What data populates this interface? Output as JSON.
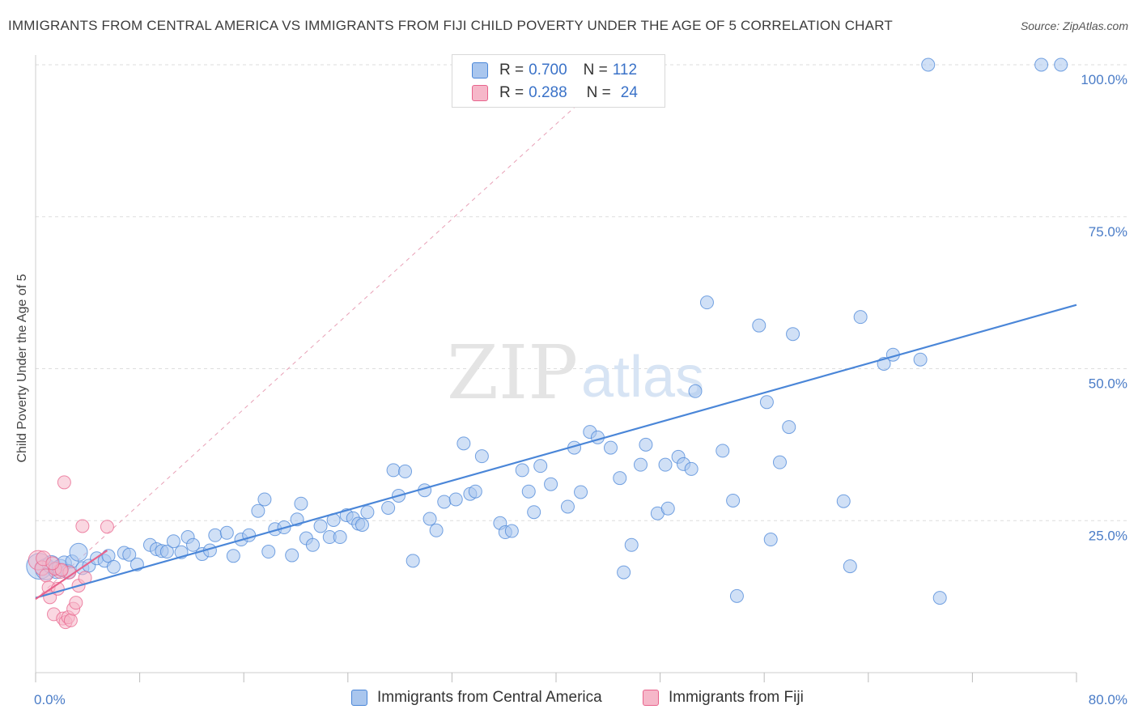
{
  "title": "IMMIGRANTS FROM CENTRAL AMERICA VS IMMIGRANTS FROM FIJI CHILD POVERTY UNDER THE AGE OF 5 CORRELATION CHART",
  "source": "Source: ZipAtlas.com",
  "watermark": {
    "zip": "ZIP",
    "atlas": "atlas"
  },
  "colors": {
    "blue": "#4a86d8",
    "blue_fill": "#a9c6ee",
    "pink": "#e8638c",
    "pink_fill": "#f6b7c9",
    "tick": "#4a7cc7",
    "grid": "#dddddd"
  },
  "legend": {
    "rows": [
      {
        "r_label": "R =",
        "r_value": "0.700",
        "n_label": "N =",
        "n_value": "112"
      },
      {
        "r_label": "R =",
        "r_value": "0.288",
        "n_label": "N =",
        "n_value": "24"
      }
    ]
  },
  "bottom_legend": [
    "Immigrants from Central America",
    "Immigrants from Fiji"
  ],
  "chart_data": {
    "type": "scatter",
    "title": "IMMIGRANTS FROM CENTRAL AMERICA VS IMMIGRANTS FROM FIJI CHILD POVERTY UNDER THE AGE OF 5 CORRELATION CHART",
    "xlabel": "",
    "ylabel": "Child Poverty Under the Age of 5",
    "xlim": [
      0,
      80
    ],
    "ylim": [
      0,
      100
    ],
    "x_tick_labels": [
      {
        "value": 0,
        "label": "0.0%"
      },
      {
        "value": 80,
        "label": "80.0%"
      }
    ],
    "y_tick_labels": [
      {
        "value": 25,
        "label": "25.0%"
      },
      {
        "value": 50,
        "label": "50.0%"
      },
      {
        "value": 75,
        "label": "75.0%"
      },
      {
        "value": 100,
        "label": "100.0%"
      }
    ],
    "grid": true,
    "series": [
      {
        "name": "Immigrants from Central America",
        "color": "#4a86d8",
        "R": 0.7,
        "N": 112,
        "trend": [
          [
            0,
            12.3
          ],
          [
            80,
            60.5
          ]
        ],
        "points": [
          [
            0.3,
            17.5,
            16
          ],
          [
            0.8,
            17,
            13
          ],
          [
            1.2,
            17.8,
            11
          ],
          [
            1.6,
            16.8,
            10
          ],
          [
            1.9,
            17.3,
            10
          ],
          [
            2.2,
            18,
            9
          ],
          [
            2.5,
            16.6,
            9
          ],
          [
            2.8,
            18.3,
            8
          ],
          [
            3.3,
            19.8,
            11
          ],
          [
            3.6,
            17.2,
            8
          ],
          [
            4.1,
            17.6,
            8
          ],
          [
            4.7,
            18.8,
            8
          ],
          [
            5.3,
            18.4,
            8
          ],
          [
            5.6,
            19.2,
            8
          ],
          [
            6.0,
            17.4,
            8
          ],
          [
            6.8,
            19.7,
            8
          ],
          [
            7.2,
            19.4,
            8
          ],
          [
            7.8,
            17.8,
            8
          ],
          [
            8.8,
            21,
            8
          ],
          [
            9.3,
            20.3,
            8
          ],
          [
            9.7,
            20,
            8
          ],
          [
            10.1,
            19.9,
            8
          ],
          [
            10.6,
            21.6,
            8
          ],
          [
            11.2,
            19.8,
            8
          ],
          [
            11.7,
            22.3,
            8
          ],
          [
            12.1,
            21,
            8
          ],
          [
            12.8,
            19.5,
            8
          ],
          [
            13.4,
            20.1,
            8
          ],
          [
            13.8,
            22.6,
            8
          ],
          [
            14.7,
            23,
            8
          ],
          [
            15.2,
            19.2,
            8
          ],
          [
            15.8,
            21.9,
            8
          ],
          [
            16.4,
            22.6,
            8
          ],
          [
            17.1,
            26.6,
            8
          ],
          [
            17.6,
            28.5,
            8
          ],
          [
            17.9,
            19.9,
            8
          ],
          [
            18.4,
            23.6,
            8
          ],
          [
            19.1,
            23.9,
            8
          ],
          [
            19.7,
            19.3,
            8
          ],
          [
            20.1,
            25.2,
            8
          ],
          [
            20.4,
            27.8,
            8
          ],
          [
            20.8,
            22.1,
            8
          ],
          [
            21.3,
            21,
            8
          ],
          [
            21.9,
            24.1,
            8
          ],
          [
            22.6,
            22.3,
            8
          ],
          [
            22.9,
            25.1,
            8
          ],
          [
            23.4,
            22.3,
            8
          ],
          [
            23.9,
            25.9,
            8
          ],
          [
            24.4,
            25.4,
            8
          ],
          [
            24.8,
            24.5,
            8
          ],
          [
            25.1,
            24.3,
            8
          ],
          [
            25.5,
            26.4,
            8
          ],
          [
            27.5,
            33.3,
            8
          ],
          [
            27.9,
            29.1,
            8
          ],
          [
            28.4,
            33.1,
            8
          ],
          [
            27.1,
            27.1,
            8
          ],
          [
            29.0,
            18.4,
            8
          ],
          [
            29.9,
            30,
            8
          ],
          [
            30.3,
            25.3,
            8
          ],
          [
            30.8,
            23.4,
            8
          ],
          [
            31.4,
            28.1,
            8
          ],
          [
            32.3,
            28.5,
            8
          ],
          [
            32.9,
            37.7,
            8
          ],
          [
            33.4,
            29.4,
            8
          ],
          [
            33.8,
            29.8,
            8
          ],
          [
            34.3,
            35.6,
            8
          ],
          [
            35.7,
            24.6,
            8
          ],
          [
            36.1,
            23.1,
            8
          ],
          [
            36.6,
            23.3,
            8
          ],
          [
            37.4,
            33.3,
            8
          ],
          [
            37.9,
            29.8,
            8
          ],
          [
            38.3,
            26.4,
            8
          ],
          [
            38.8,
            34,
            8
          ],
          [
            39.6,
            31,
            8
          ],
          [
            40.9,
            27.3,
            8
          ],
          [
            41.4,
            37,
            8
          ],
          [
            41.9,
            29.7,
            8
          ],
          [
            42.6,
            39.6,
            8
          ],
          [
            43.2,
            38.7,
            8
          ],
          [
            44.2,
            37,
            8
          ],
          [
            44.9,
            32,
            8
          ],
          [
            45.8,
            21,
            8
          ],
          [
            45.2,
            16.5,
            8
          ],
          [
            46.5,
            34.2,
            8
          ],
          [
            46.9,
            37.5,
            8
          ],
          [
            47.8,
            26.2,
            8
          ],
          [
            48.4,
            34.2,
            8
          ],
          [
            48.6,
            27,
            8
          ],
          [
            49.4,
            35.5,
            8
          ],
          [
            49.8,
            34.3,
            8
          ],
          [
            50.4,
            33.5,
            8
          ],
          [
            50.7,
            46.3,
            8
          ],
          [
            51.6,
            60.9,
            8
          ],
          [
            52.8,
            36.5,
            8
          ],
          [
            53.6,
            28.3,
            8
          ],
          [
            53.9,
            12.6,
            8
          ],
          [
            55.6,
            57.1,
            8
          ],
          [
            56.2,
            44.5,
            8
          ],
          [
            56.5,
            21.9,
            8
          ],
          [
            57.2,
            34.6,
            8
          ],
          [
            57.9,
            40.4,
            8
          ],
          [
            58.2,
            55.7,
            8
          ],
          [
            62.1,
            28.2,
            8
          ],
          [
            62.6,
            17.5,
            8
          ],
          [
            63.4,
            58.5,
            8
          ],
          [
            65.2,
            50.8,
            8
          ],
          [
            65.9,
            52.3,
            8
          ],
          [
            68.0,
            51.5,
            8
          ],
          [
            69.5,
            12.3,
            8
          ],
          [
            68.6,
            100,
            8
          ],
          [
            77.3,
            100,
            8
          ],
          [
            78.8,
            100,
            8
          ]
        ]
      },
      {
        "name": "Immigrants from Fiji",
        "color": "#e8638c",
        "R": 0.288,
        "N": 24,
        "trend": [
          [
            0,
            12.1
          ],
          [
            5.5,
            20.1
          ]
        ],
        "points": [
          [
            0.2,
            18.5,
            12
          ],
          [
            0.5,
            17.2,
            9
          ],
          [
            0.8,
            16,
            8
          ],
          [
            1.0,
            14,
            8
          ],
          [
            1.1,
            12.4,
            8
          ],
          [
            1.4,
            9.6,
            8
          ],
          [
            1.7,
            13.8,
            8
          ],
          [
            1.9,
            16.7,
            9
          ],
          [
            2.1,
            8.9,
            8
          ],
          [
            2.3,
            8.3,
            8
          ],
          [
            2.5,
            9.1,
            8
          ],
          [
            2.7,
            8.6,
            8
          ],
          [
            2.2,
            31.3,
            8
          ],
          [
            2.9,
            10.5,
            8
          ],
          [
            3.1,
            11.5,
            8
          ],
          [
            3.3,
            14.3,
            8
          ],
          [
            3.6,
            24.1,
            8
          ],
          [
            2.6,
            16.5,
            8
          ],
          [
            1.5,
            17.1,
            8
          ],
          [
            5.5,
            24,
            8
          ],
          [
            0.6,
            18.8,
            9
          ],
          [
            3.8,
            15.6,
            8
          ],
          [
            2.0,
            16.9,
            8
          ],
          [
            1.3,
            18,
            8
          ]
        ]
      }
    ],
    "reference_line": {
      "style": "dashed",
      "color": "#e8a0b6",
      "from": [
        0,
        12.1
      ],
      "to": [
        45,
        100
      ]
    }
  }
}
